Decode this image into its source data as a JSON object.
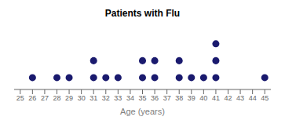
{
  "chart_data": {
    "type": "scatter",
    "title": "Patients with Flu",
    "xlabel": "Age (years)",
    "x": [
      26,
      28,
      29,
      31,
      31,
      32,
      33,
      35,
      35,
      36,
      36,
      38,
      38,
      39,
      40,
      41,
      41,
      41,
      45
    ],
    "values": [
      1,
      1,
      1,
      1,
      2,
      1,
      1,
      1,
      2,
      1,
      2,
      1,
      2,
      1,
      1,
      1,
      2,
      3,
      1
    ],
    "color": "#1a1a6e",
    "xlim": [
      24.5,
      45.5
    ],
    "xticks": [
      25,
      26,
      27,
      28,
      29,
      30,
      31,
      32,
      33,
      34,
      35,
      36,
      37,
      38,
      39,
      40,
      41,
      42,
      43,
      44,
      45
    ],
    "ylim": [
      0.3,
      4.2
    ],
    "tick_labels": "x",
    "grid": false
  }
}
